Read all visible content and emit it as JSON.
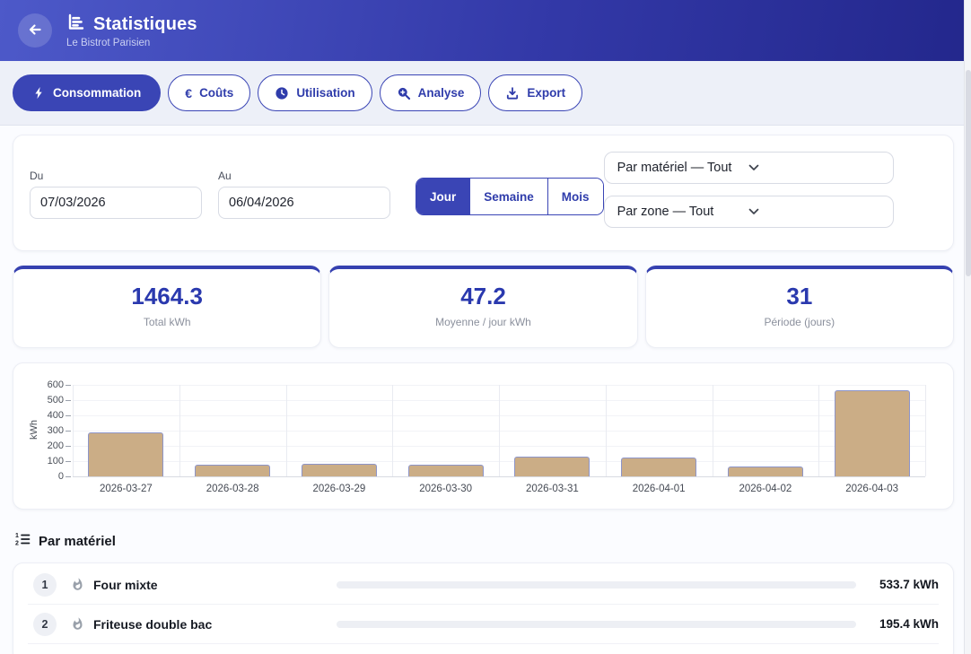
{
  "header": {
    "title": "Statistiques",
    "subtitle": "Le Bistrot Parisien",
    "back_icon": "arrow-left-icon",
    "title_icon": "bar-chart-icon"
  },
  "tabs": [
    {
      "label": "Consommation",
      "icon": "lightning-bolt-icon",
      "active": true
    },
    {
      "label": "Coûts",
      "icon": "euro-icon",
      "active": false
    },
    {
      "label": "Utilisation",
      "icon": "clock-icon",
      "active": false
    },
    {
      "label": "Analyse",
      "icon": "magnifier-plus-icon",
      "active": false
    },
    {
      "label": "Export",
      "icon": "download-icon",
      "active": false
    }
  ],
  "filters": {
    "from_label": "Du",
    "from_value": "07/03/2026",
    "to_label": "Au",
    "to_value": "06/04/2026",
    "granularity": {
      "options": [
        "Jour",
        "Semaine",
        "Mois"
      ],
      "selected": "Jour"
    },
    "material_select": "Par matériel — Tout",
    "zone_select": "Par zone — Tout"
  },
  "stats": [
    {
      "value": "1464.3",
      "label": "Total kWh"
    },
    {
      "value": "47.2",
      "label": "Moyenne / jour kWh"
    },
    {
      "value": "31",
      "label": "Période (jours)"
    }
  ],
  "chart_data": {
    "type": "bar",
    "x": [
      "2026-03-27",
      "2026-03-28",
      "2026-03-29",
      "2026-03-30",
      "2026-03-31",
      "2026-04-01",
      "2026-04-02",
      "2026-04-03"
    ],
    "values": [
      290,
      75,
      80,
      75,
      130,
      125,
      65,
      565
    ],
    "xlabel": "",
    "ylabel": "kWh",
    "ylim": [
      0,
      600
    ],
    "yticks": [
      0,
      100,
      200,
      300,
      400,
      500,
      600
    ],
    "grid": true,
    "legend": false,
    "bar_color": "#cbad86",
    "bar_border_color": "#8d95c9"
  },
  "equipment_section": {
    "title": "Par matériel",
    "icon": "numbered-list-icon",
    "items": [
      {
        "rank": "1",
        "icon": "flame-icon",
        "name": "Four mixte",
        "value": "533.7 kWh"
      },
      {
        "rank": "2",
        "icon": "flame-icon",
        "name": "Friteuse double bac",
        "value": "195.4 kWh"
      }
    ]
  },
  "colors": {
    "accent": "#3a45b5",
    "header_gradient_start": "#4d59c9",
    "header_gradient_end": "#23278c",
    "stat_value": "#2a39ae",
    "bar_fill": "#cbad86",
    "bar_border": "#8d95c9"
  }
}
